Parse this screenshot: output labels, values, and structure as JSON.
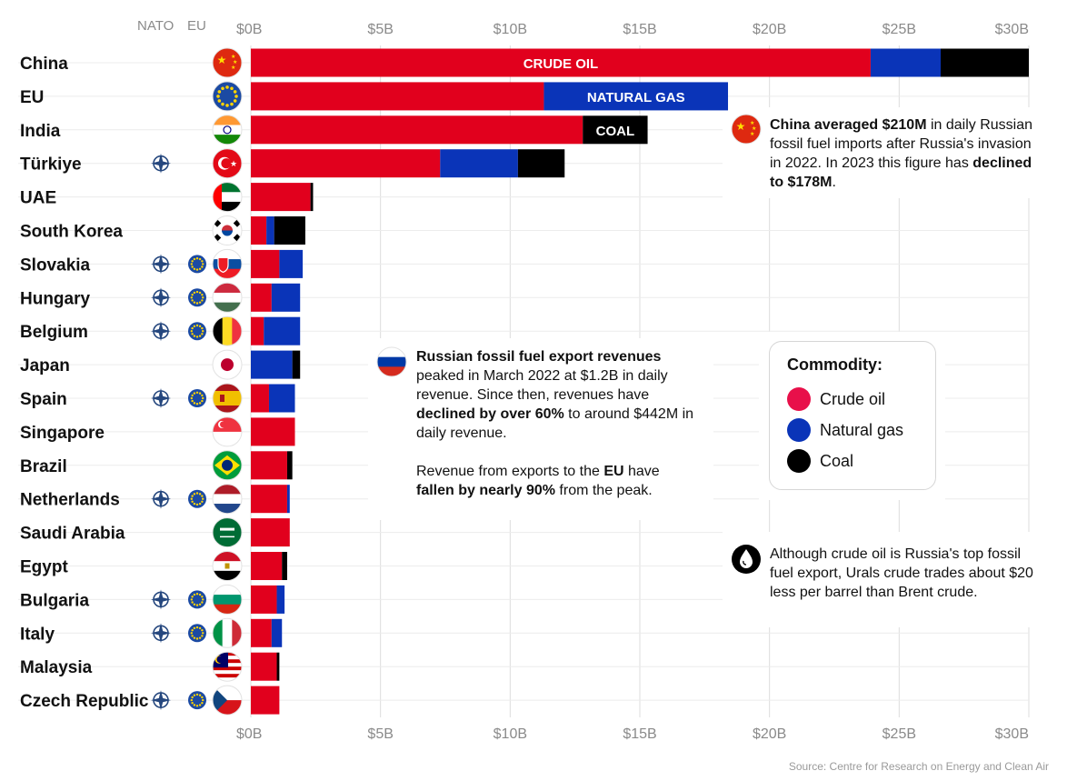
{
  "headers": {
    "nato": "NATO",
    "eu": "EU"
  },
  "colors": {
    "crude_oil": "#e1001d",
    "natural_gas": "#0a34b8",
    "coal": "#000000"
  },
  "chart_data": {
    "type": "bar",
    "orientation": "horizontal",
    "stacked": true,
    "xlim": [
      0,
      30
    ],
    "x_ticks": [
      "$0B",
      "$5B",
      "$10B",
      "$15B",
      "$20B",
      "$25B",
      "$30B"
    ],
    "grid": true,
    "categories": [
      "China",
      "EU",
      "India",
      "Türkiye",
      "UAE",
      "South Korea",
      "Slovakia",
      "Hungary",
      "Belgium",
      "Japan",
      "Spain",
      "Singapore",
      "Brazil",
      "Netherlands",
      "Saudi Arabia",
      "Egypt",
      "Bulgaria",
      "Italy",
      "Malaysia",
      "Czech Republic"
    ],
    "nato": [
      false,
      false,
      false,
      true,
      false,
      false,
      true,
      true,
      true,
      false,
      true,
      false,
      false,
      true,
      false,
      false,
      true,
      true,
      false,
      true
    ],
    "eu": [
      false,
      false,
      false,
      false,
      false,
      false,
      true,
      true,
      true,
      false,
      true,
      false,
      false,
      true,
      false,
      false,
      true,
      true,
      false,
      true
    ],
    "series": [
      {
        "name": "Crude oil",
        "color_key": "crude_oil",
        "values": [
          23.9,
          11.3,
          12.8,
          7.3,
          2.3,
          0.6,
          1.1,
          0.8,
          0.5,
          0.0,
          0.7,
          1.7,
          1.4,
          1.4,
          1.5,
          1.2,
          1.0,
          0.8,
          1.0,
          1.1
        ]
      },
      {
        "name": "Natural gas",
        "color_key": "natural_gas",
        "values": [
          2.7,
          7.1,
          0.0,
          3.0,
          0.0,
          0.3,
          0.9,
          1.1,
          1.4,
          1.6,
          1.0,
          0.0,
          0.0,
          0.1,
          0.0,
          0.0,
          0.3,
          0.4,
          0.0,
          0.0
        ]
      },
      {
        "name": "Coal",
        "color_key": "coal",
        "values": [
          3.4,
          0.0,
          2.5,
          1.8,
          0.1,
          1.2,
          0.0,
          0.0,
          0.0,
          0.3,
          0.0,
          0.0,
          0.2,
          0.0,
          0.0,
          0.2,
          0.0,
          0.0,
          0.1,
          0.0
        ]
      }
    ],
    "bar_labels": [
      {
        "row": 0,
        "series": 0,
        "text": "CRUDE OIL"
      },
      {
        "row": 1,
        "series": 1,
        "text": "NATURAL GAS"
      },
      {
        "row": 2,
        "series": 2,
        "text": "COAL"
      }
    ]
  },
  "legend": {
    "title": "Commodity:",
    "items": [
      {
        "label": "Crude oil",
        "color": "#e8104a"
      },
      {
        "label": "Natural gas",
        "color": "#0a34b8"
      },
      {
        "label": "Coal",
        "color": "#000000"
      }
    ]
  },
  "china_note": {
    "p1_bold": "China averaged $210M",
    "p1_rest": " in daily Russian fossil fuel imports after Russia's invasion in 2022. In 2023 this figure has ",
    "p1_bold2": "declined to $178M",
    "p1_end": "."
  },
  "russia_note": {
    "bold1": "Russian fossil fuel export revenues",
    "text1": " peaked in March 2022 at $1.2B in daily revenue. Since then, revenues have ",
    "bold2": "declined by over 60%",
    "text2": " to around $442M in daily revenue.",
    "text3": "Revenue from exports to the ",
    "bold3": "EU",
    "text4": " have ",
    "bold4": "fallen by nearly 90%",
    "text5": " from the peak."
  },
  "oil_note": {
    "text": "Although crude oil is Russia's top fossil fuel export, Urals crude trades about $20 less per barrel than Brent crude."
  },
  "source": "Source: Centre for Research on Energy and Clean Air"
}
